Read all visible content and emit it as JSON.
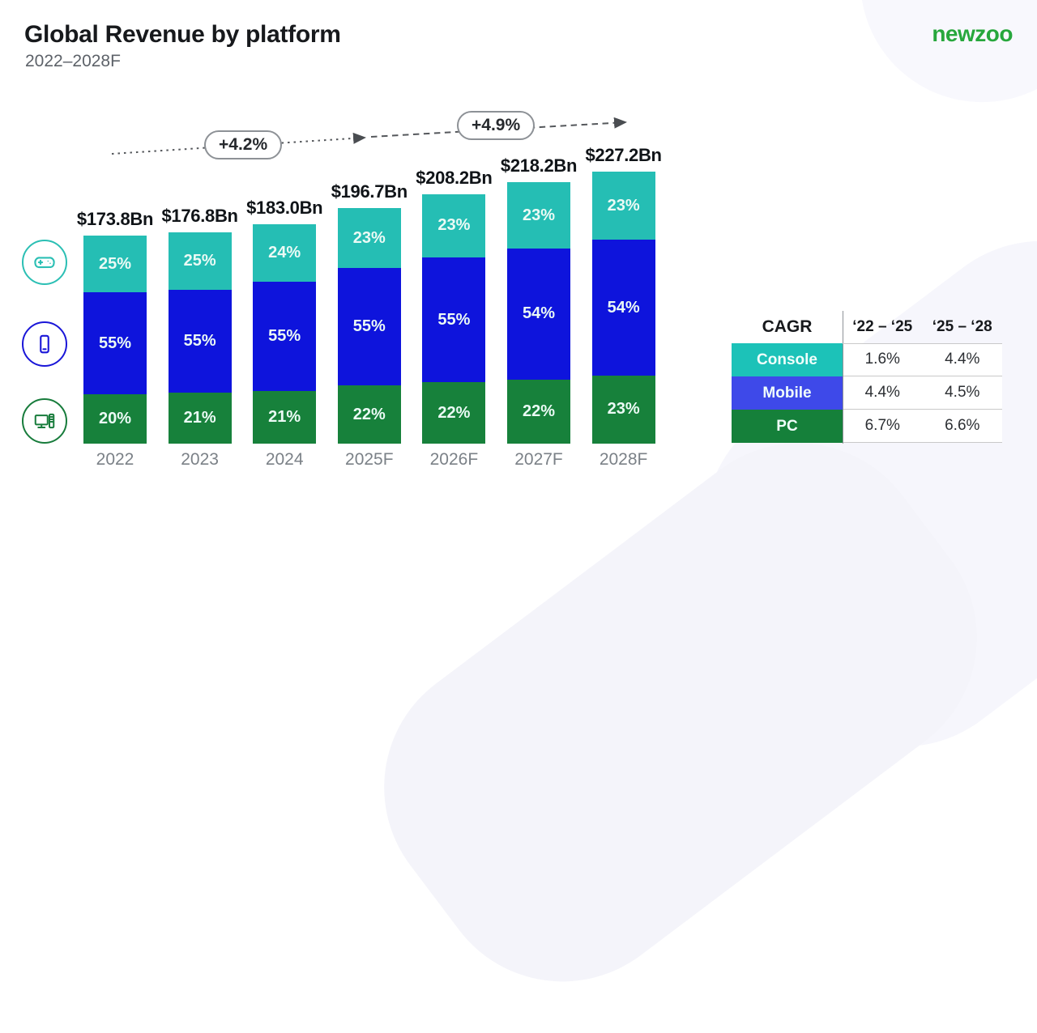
{
  "header": {
    "title": "Global Revenue by platform",
    "subtitle": "2022–2028F",
    "logo_text": "newzoo",
    "logo_color": "#27a73c"
  },
  "chart_data": {
    "type": "bar",
    "subtype": "stacked-percent",
    "title": "Global Revenue by platform",
    "subtitle": "2022–2028F",
    "categories": [
      "2022",
      "2023",
      "2024",
      "2025F",
      "2026F",
      "2027F",
      "2028F"
    ],
    "totals_bn": [
      173.8,
      176.8,
      183.0,
      196.7,
      208.2,
      218.2,
      227.2
    ],
    "total_labels": [
      "$173.8Bn",
      "$176.8Bn",
      "$183.0Bn",
      "$196.7Bn",
      "$208.2Bn",
      "$218.2Bn",
      "$227.2Bn"
    ],
    "series": [
      {
        "name": "Console",
        "color": "#25beb4",
        "values_pct": [
          25,
          25,
          24,
          23,
          23,
          23,
          23
        ]
      },
      {
        "name": "Mobile",
        "color": "#0e14dc",
        "values_pct": [
          55,
          55,
          55,
          55,
          55,
          54,
          54
        ]
      },
      {
        "name": "PC",
        "color": "#17813b",
        "values_pct": [
          20,
          21,
          21,
          22,
          22,
          22,
          23
        ]
      }
    ],
    "growth_annotations": [
      {
        "label": "+4.2%",
        "span": "2022 to 2025F"
      },
      {
        "label": "+4.9%",
        "span": "2025F to 2028F"
      }
    ],
    "ylabel": "",
    "xlabel": "",
    "grid": false,
    "legend_position": "left-icons"
  },
  "platform_icons": [
    {
      "name": "console",
      "icon": "gamepad-icon",
      "color": "#2bbfb4"
    },
    {
      "name": "mobile",
      "icon": "smartphone-icon",
      "color": "#1a16d8"
    },
    {
      "name": "pc",
      "icon": "desktop-pc-icon",
      "color": "#187c3c"
    }
  ],
  "cagr_table": {
    "title": "CAGR",
    "columns": [
      "‘22 – ‘25",
      "‘25 – ‘28"
    ],
    "rows": [
      {
        "label": "Console",
        "color": "#1cc2b8",
        "values": [
          "1.6%",
          "4.4%"
        ]
      },
      {
        "label": "Mobile",
        "color": "#3e49e9",
        "values": [
          "4.4%",
          "4.5%"
        ]
      },
      {
        "label": "PC",
        "color": "#15803a",
        "values": [
          "6.7%",
          "6.6%"
        ]
      }
    ]
  },
  "annotation_pills": {
    "first": "+4.2%",
    "second": "+4.9%"
  }
}
